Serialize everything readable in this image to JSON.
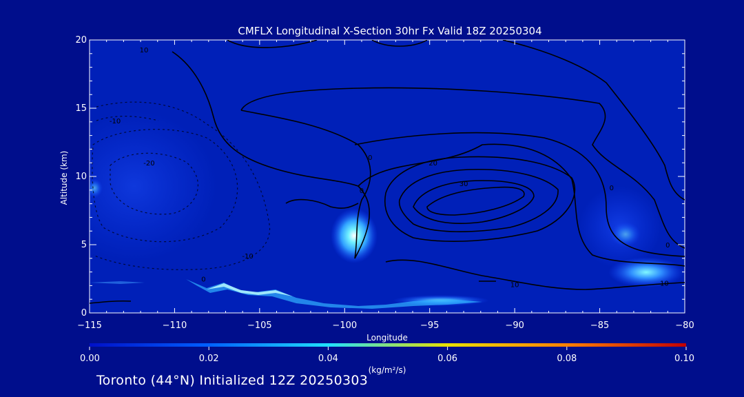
{
  "chart_data": {
    "type": "heatmap",
    "title": "CMFLX Longitudinal X-Section 30hr  Fx Valid 18Z 20250304",
    "xlabel": "Longitude",
    "ylabel": "Altitude (km)",
    "xlim": [
      -115,
      -80
    ],
    "ylim": [
      0,
      20
    ],
    "x_ticks": [
      -115,
      -110,
      -105,
      -100,
      -95,
      -90,
      -85,
      -80
    ],
    "y_ticks": [
      0,
      5,
      10,
      15,
      20
    ],
    "x_tick_labels": [
      "−115",
      "−110",
      "−105",
      "−100",
      "−95",
      "−90",
      "−85",
      "−80"
    ],
    "y_tick_labels": [
      "0",
      "5",
      "10",
      "15",
      "20"
    ],
    "colorbar": {
      "min": 0.0,
      "max": 0.1,
      "ticks": [
        "0.00",
        "0.02",
        "0.04",
        "0.06",
        "0.08",
        "0.10"
      ],
      "unit_label": "(kg/m²/s)",
      "colors": [
        "#0010c8",
        "#0060ff",
        "#20e0ff",
        "#e8e000",
        "#ff8000",
        "#c00000"
      ]
    },
    "flux_maxima": [
      {
        "lon": -99.5,
        "alt": 5.8,
        "value": 0.035
      },
      {
        "lon": -82.3,
        "alt": 3.2,
        "value": 0.03
      },
      {
        "lon": -94.5,
        "alt": 1.0,
        "value": 0.025
      },
      {
        "lon": -107.0,
        "alt": 2.1,
        "value": 0.02
      }
    ],
    "contour_labels": [
      {
        "text": "10",
        "lon": -111.8,
        "alt": 19.1
      },
      {
        "text": "-10",
        "lon": -113.5,
        "alt": 13.9
      },
      {
        "text": "-20",
        "lon": -111.5,
        "alt": 10.8
      },
      {
        "text": "-10",
        "lon": -105.7,
        "alt": 4.0
      },
      {
        "text": "0",
        "lon": -108.3,
        "alt": 2.3
      },
      {
        "text": "0",
        "lon": -99.0,
        "alt": 8.8
      },
      {
        "text": "0",
        "lon": -98.5,
        "alt": 11.2
      },
      {
        "text": "20",
        "lon": -94.8,
        "alt": 10.8
      },
      {
        "text": "30",
        "lon": -93.0,
        "alt": 9.3
      },
      {
        "text": "10",
        "lon": -90.0,
        "alt": 1.9
      },
      {
        "text": "0",
        "lon": -84.3,
        "alt": 9.0
      },
      {
        "text": "0",
        "lon": -81.0,
        "alt": 4.8
      },
      {
        "text": "10",
        "lon": -81.2,
        "alt": 2.0
      }
    ],
    "grid": false,
    "legend": "colorbar-bottom"
  },
  "footer": "Toronto (44°N) Initialized 12Z 20250303"
}
